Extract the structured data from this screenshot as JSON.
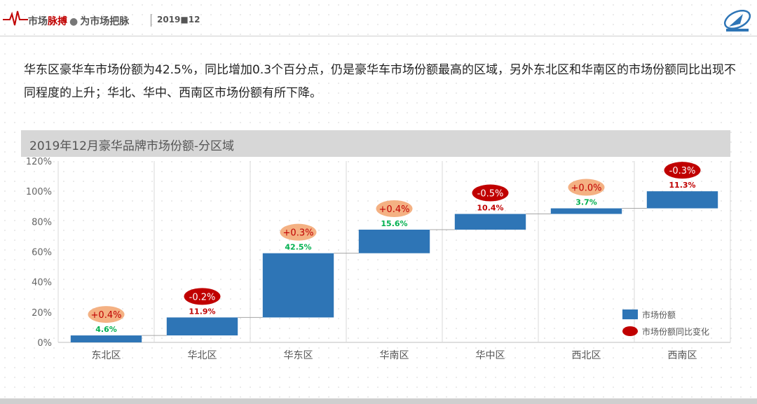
{
  "header": {
    "brand_left": "市场",
    "brand_red": "脉搏",
    "brand_dot": "●",
    "brand_right": "为市场把脉",
    "date": "2019■12"
  },
  "intro_text": "华东区豪华车市场份额为42.5%，同比增加0.3个百分点，仍是豪华车市场份额最高的区域，另外东北区和华南区的市场份额同比出现不同程度的上升；华北、华中、西南区市场份额有所下降。",
  "colors": {
    "bar": "#2e75b6",
    "bubble_positive": "#f4b183",
    "bubble_negative": "#c00000",
    "label_positive": "#00b050",
    "label_negative": "#c00000",
    "grid": "#d9d9d9"
  },
  "chart_data": {
    "type": "bar",
    "subtype": "waterfall",
    "title": "2019年12月豪华品牌市场份额-分区域",
    "categories": [
      "东北区",
      "华北区",
      "华东区",
      "华南区",
      "华中区",
      "西北区",
      "西南区"
    ],
    "series": [
      {
        "name": "市场份额",
        "values": [
          4.6,
          11.9,
          42.5,
          15.6,
          10.4,
          3.7,
          11.3
        ]
      },
      {
        "name": "市场份额同比变化",
        "values": [
          0.4,
          -0.2,
          0.3,
          0.4,
          -0.5,
          0.0,
          -0.3
        ]
      }
    ],
    "value_labels": [
      "4.6%",
      "11.9%",
      "42.5%",
      "15.6%",
      "10.4%",
      "3.7%",
      "11.3%"
    ],
    "change_labels": [
      "+0.4%",
      "-0.2%",
      "+0.3%",
      "+0.4%",
      "-0.5%",
      "+0.0%",
      "-0.3%"
    ],
    "y_ticks": [
      "0%",
      "20%",
      "40%",
      "60%",
      "80%",
      "100%",
      "120%"
    ],
    "ylim": [
      0,
      120
    ],
    "grid": "vertical",
    "legend_position": "bottom-right"
  }
}
